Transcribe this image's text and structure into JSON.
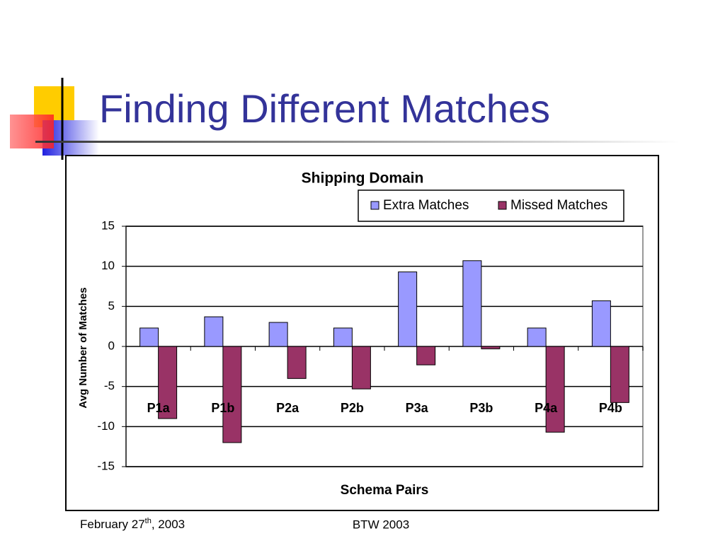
{
  "slide": {
    "title": "Finding Different Matches",
    "footer": {
      "date": {
        "text": "February 27",
        "sup": "th",
        "rest": ", 2003"
      },
      "venue": "BTW 2003"
    }
  },
  "chart_data": {
    "type": "bar",
    "title": "Shipping Domain",
    "x_label": "Schema Pairs",
    "y_label": "Avg Number of Matches",
    "categories": [
      "P1a",
      "P1b",
      "P2a",
      "P2b",
      "P3a",
      "P3b",
      "P4a",
      "P4b"
    ],
    "series": [
      {
        "name": "Extra Matches",
        "color": "#9999ff",
        "values": [
          2.3,
          3.7,
          3.0,
          2.3,
          9.3,
          10.7,
          2.3,
          5.7
        ]
      },
      {
        "name": "Missed Matches",
        "color": "#993366",
        "values": [
          -9,
          -12,
          -4,
          -5.3,
          -2.3,
          -0.3,
          -10.7,
          -7
        ]
      }
    ],
    "ylim": [
      -15,
      15
    ],
    "yticks": [
      -15,
      -10,
      -5,
      0,
      5,
      10,
      15
    ],
    "grid": true
  }
}
